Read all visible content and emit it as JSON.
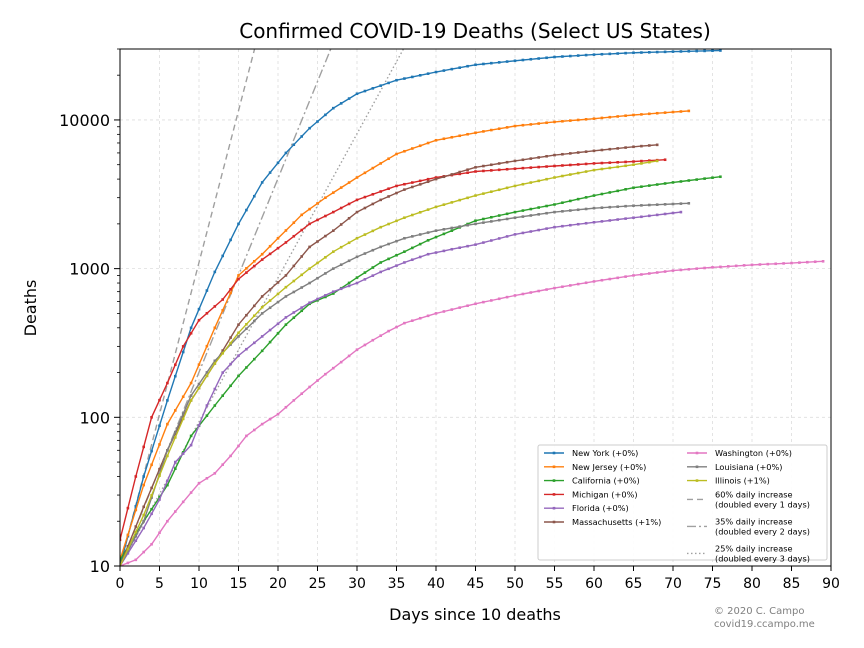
{
  "chart_data": {
    "type": "line",
    "title": "Confirmed COVID-19 Deaths (Select US States)",
    "xlabel": "Days since 10 deaths",
    "ylabel": "Deaths",
    "xlim": [
      0,
      90
    ],
    "ylim": [
      10,
      30000
    ],
    "yscale": "log",
    "x_ticks": [
      0,
      5,
      10,
      15,
      20,
      25,
      30,
      35,
      40,
      45,
      50,
      55,
      60,
      65,
      70,
      75,
      80,
      85,
      90
    ],
    "y_ticks": [
      10,
      100,
      1000,
      10000
    ],
    "y_tick_labels": [
      "10",
      "100",
      "1000",
      "10000"
    ],
    "grid": true,
    "legend_position": "lower-right",
    "series": [
      {
        "name": "New York (+0%)",
        "color": "#1f77b4",
        "days": 77,
        "points": [
          [
            0,
            10
          ],
          [
            3,
            40
          ],
          [
            6,
            130
          ],
          [
            9,
            400
          ],
          [
            12,
            950
          ],
          [
            15,
            2000
          ],
          [
            18,
            3800
          ],
          [
            21,
            6000
          ],
          [
            24,
            8800
          ],
          [
            27,
            12000
          ],
          [
            30,
            15000
          ],
          [
            35,
            18500
          ],
          [
            40,
            21000
          ],
          [
            45,
            23500
          ],
          [
            50,
            25000
          ],
          [
            55,
            26500
          ],
          [
            60,
            27500
          ],
          [
            65,
            28300
          ],
          [
            70,
            28800
          ],
          [
            76,
            29300
          ]
        ]
      },
      {
        "name": "New Jersey (+0%)",
        "color": "#ff7f0e",
        "days": 73,
        "points": [
          [
            0,
            11
          ],
          [
            3,
            35
          ],
          [
            6,
            90
          ],
          [
            9,
            170
          ],
          [
            12,
            400
          ],
          [
            15,
            900
          ],
          [
            18,
            1250
          ],
          [
            20,
            1600
          ],
          [
            23,
            2300
          ],
          [
            26,
            3000
          ],
          [
            30,
            4100
          ],
          [
            35,
            5900
          ],
          [
            40,
            7300
          ],
          [
            45,
            8200
          ],
          [
            50,
            9100
          ],
          [
            55,
            9700
          ],
          [
            60,
            10200
          ],
          [
            65,
            10800
          ],
          [
            72,
            11500
          ]
        ]
      },
      {
        "name": "California (+0%)",
        "color": "#2ca02c",
        "days": 77,
        "points": [
          [
            0,
            11
          ],
          [
            3,
            20
          ],
          [
            6,
            35
          ],
          [
            9,
            75
          ],
          [
            12,
            120
          ],
          [
            15,
            190
          ],
          [
            18,
            280
          ],
          [
            21,
            420
          ],
          [
            24,
            580
          ],
          [
            27,
            680
          ],
          [
            30,
            870
          ],
          [
            33,
            1100
          ],
          [
            36,
            1300
          ],
          [
            39,
            1550
          ],
          [
            42,
            1800
          ],
          [
            45,
            2100
          ],
          [
            50,
            2400
          ],
          [
            55,
            2700
          ],
          [
            60,
            3100
          ],
          [
            65,
            3500
          ],
          [
            70,
            3800
          ],
          [
            76,
            4150
          ]
        ]
      },
      {
        "name": "Michigan (+0%)",
        "color": "#d62728",
        "days": 70,
        "points": [
          [
            0,
            15
          ],
          [
            2,
            40
          ],
          [
            4,
            100
          ],
          [
            6,
            170
          ],
          [
            8,
            300
          ],
          [
            10,
            450
          ],
          [
            13,
            620
          ],
          [
            15,
            850
          ],
          [
            18,
            1150
          ],
          [
            21,
            1500
          ],
          [
            24,
            2000
          ],
          [
            27,
            2400
          ],
          [
            30,
            2900
          ],
          [
            35,
            3600
          ],
          [
            40,
            4100
          ],
          [
            45,
            4500
          ],
          [
            50,
            4700
          ],
          [
            55,
            4900
          ],
          [
            60,
            5100
          ],
          [
            65,
            5250
          ],
          [
            69,
            5400
          ]
        ]
      },
      {
        "name": "Florida (+0%)",
        "color": "#9467bd",
        "days": 72,
        "points": [
          [
            0,
            10
          ],
          [
            3,
            18
          ],
          [
            5,
            28
          ],
          [
            7,
            50
          ],
          [
            9,
            65
          ],
          [
            11,
            120
          ],
          [
            13,
            200
          ],
          [
            15,
            260
          ],
          [
            18,
            350
          ],
          [
            21,
            470
          ],
          [
            24,
            590
          ],
          [
            27,
            700
          ],
          [
            30,
            800
          ],
          [
            33,
            950
          ],
          [
            36,
            1100
          ],
          [
            39,
            1250
          ],
          [
            42,
            1350
          ],
          [
            45,
            1450
          ],
          [
            50,
            1700
          ],
          [
            55,
            1900
          ],
          [
            60,
            2050
          ],
          [
            65,
            2200
          ],
          [
            71,
            2400
          ]
        ]
      },
      {
        "name": "Massachusetts (+1%)",
        "color": "#8c564b",
        "days": 69,
        "points": [
          [
            0,
            10
          ],
          [
            3,
            25
          ],
          [
            6,
            60
          ],
          [
            9,
            130
          ],
          [
            12,
            230
          ],
          [
            15,
            420
          ],
          [
            18,
            650
          ],
          [
            21,
            900
          ],
          [
            24,
            1400
          ],
          [
            27,
            1800
          ],
          [
            30,
            2400
          ],
          [
            33,
            2900
          ],
          [
            36,
            3400
          ],
          [
            40,
            4000
          ],
          [
            45,
            4800
          ],
          [
            50,
            5300
          ],
          [
            55,
            5800
          ],
          [
            60,
            6200
          ],
          [
            65,
            6600
          ],
          [
            68,
            6800
          ]
        ]
      },
      {
        "name": "Washington (+0%)",
        "color": "#e377c2",
        "days": 90,
        "points": [
          [
            0,
            10
          ],
          [
            2,
            11
          ],
          [
            4,
            14
          ],
          [
            6,
            20
          ],
          [
            8,
            27
          ],
          [
            10,
            36
          ],
          [
            12,
            42
          ],
          [
            14,
            55
          ],
          [
            16,
            75
          ],
          [
            18,
            90
          ],
          [
            20,
            105
          ],
          [
            22,
            130
          ],
          [
            24,
            160
          ],
          [
            26,
            195
          ],
          [
            28,
            235
          ],
          [
            30,
            285
          ],
          [
            32,
            330
          ],
          [
            34,
            380
          ],
          [
            36,
            430
          ],
          [
            40,
            500
          ],
          [
            45,
            580
          ],
          [
            50,
            660
          ],
          [
            55,
            740
          ],
          [
            60,
            820
          ],
          [
            65,
            900
          ],
          [
            70,
            970
          ],
          [
            75,
            1020
          ],
          [
            80,
            1060
          ],
          [
            85,
            1090
          ],
          [
            89,
            1120
          ]
        ]
      },
      {
        "name": "Louisiana (+0%)",
        "color": "#7f7f7f",
        "days": 73,
        "points": [
          [
            0,
            10
          ],
          [
            3,
            20
          ],
          [
            6,
            60
          ],
          [
            9,
            140
          ],
          [
            12,
            240
          ],
          [
            15,
            350
          ],
          [
            18,
            500
          ],
          [
            21,
            650
          ],
          [
            24,
            800
          ],
          [
            27,
            1000
          ],
          [
            30,
            1200
          ],
          [
            33,
            1400
          ],
          [
            36,
            1600
          ],
          [
            40,
            1800
          ],
          [
            45,
            2000
          ],
          [
            50,
            2200
          ],
          [
            55,
            2400
          ],
          [
            60,
            2550
          ],
          [
            65,
            2650
          ],
          [
            72,
            2750
          ]
        ]
      },
      {
        "name": "Illinois (+1%)",
        "color": "#bcbd22",
        "days": 69,
        "points": [
          [
            0,
            10
          ],
          [
            3,
            22
          ],
          [
            6,
            55
          ],
          [
            9,
            130
          ],
          [
            12,
            230
          ],
          [
            15,
            370
          ],
          [
            18,
            550
          ],
          [
            21,
            750
          ],
          [
            24,
            1000
          ],
          [
            27,
            1300
          ],
          [
            30,
            1600
          ],
          [
            33,
            1900
          ],
          [
            36,
            2200
          ],
          [
            40,
            2600
          ],
          [
            45,
            3100
          ],
          [
            50,
            3600
          ],
          [
            55,
            4100
          ],
          [
            60,
            4600
          ],
          [
            65,
            5000
          ],
          [
            68,
            5300
          ]
        ]
      }
    ],
    "reference_lines": [
      {
        "name": "60% daily increase\n(doubled every 1 days)",
        "rate": 0.6,
        "dash": "6,4",
        "color": "#a0a0a0"
      },
      {
        "name": "35% daily increase\n(doubled every 2 days)",
        "rate": 0.35,
        "dash": "9,3,2,3",
        "color": "#a0a0a0"
      },
      {
        "name": "25% daily increase\n(doubled every 3 days)",
        "rate": 0.25,
        "dash": "1.5,2.5",
        "color": "#a0a0a0"
      }
    ]
  },
  "credit": {
    "line1": "© 2020 C. Campo",
    "line2": "covid19.ccampo.me"
  }
}
